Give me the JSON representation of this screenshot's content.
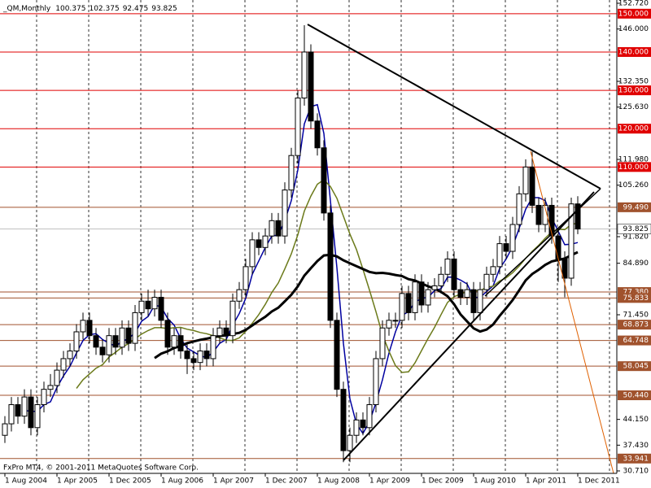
{
  "chart_data": {
    "type": "candlestick",
    "title": "_QM,Monthly",
    "footer": "FxPro MT4, © 2001-2011 MetaQuotes Software Corp.",
    "categories": [
      "1 Aug 2004",
      null,
      null,
      null,
      null,
      null,
      null,
      null,
      "1 Apr 2005",
      null,
      null,
      null,
      null,
      null,
      null,
      null,
      "1 Dec 2005",
      null,
      null,
      null,
      null,
      null,
      null,
      null,
      "1 Aug 2006",
      null,
      null,
      null,
      null,
      null,
      null,
      null,
      "1 Apr 2007",
      null,
      null,
      null,
      null,
      null,
      null,
      null,
      "1 Dec 2007",
      null,
      null,
      null,
      null,
      null,
      null,
      null,
      "1 Aug 2008",
      null,
      null,
      null,
      null,
      null,
      null,
      null,
      "1 Apr 2009",
      null,
      null,
      null,
      null,
      null,
      null,
      null,
      "1 Dec 2009",
      null,
      null,
      null,
      null,
      null,
      null,
      null,
      "1 Aug 2010",
      null,
      null,
      null,
      null,
      null,
      null,
      null,
      "1 Apr 2011",
      null,
      null,
      null,
      null,
      null,
      null,
      null,
      "1 Dec 2011"
    ],
    "open": [
      40,
      43,
      48,
      45,
      50,
      42,
      48,
      52,
      53,
      57,
      60,
      62,
      67,
      70,
      66,
      63,
      61,
      66,
      63,
      68,
      64,
      72,
      75,
      73,
      76,
      70,
      63,
      66,
      62,
      60,
      59,
      62,
      60,
      66,
      68,
      66,
      75,
      78,
      84,
      91,
      89,
      92,
      96,
      92,
      104,
      113,
      128,
      140,
      122,
      115,
      98,
      70,
      52,
      36,
      40,
      44,
      42,
      48,
      60,
      68,
      70,
      70,
      77,
      72,
      80,
      74,
      78,
      79,
      82,
      86,
      78,
      76,
      78,
      72,
      78,
      82,
      84,
      90,
      88,
      95,
      103,
      110,
      100,
      95,
      100,
      92,
      86,
      81,
      100.375
    ],
    "high": [
      45,
      50,
      50,
      52,
      52,
      50,
      54,
      56,
      59,
      62,
      64,
      69,
      72,
      72,
      68,
      65,
      68,
      68,
      70,
      70,
      74,
      77,
      78,
      78,
      78,
      72,
      68,
      68,
      64,
      62,
      64,
      64,
      68,
      70,
      70,
      77,
      80,
      86,
      93,
      93,
      94,
      98,
      98,
      106,
      115,
      130,
      147,
      142,
      124,
      117,
      100,
      72,
      54,
      42,
      46,
      46,
      50,
      62,
      70,
      72,
      72,
      79,
      79,
      82,
      82,
      80,
      81,
      84,
      88,
      88,
      80,
      80,
      80,
      80,
      84,
      86,
      92,
      92,
      97,
      105,
      112,
      114,
      102,
      102,
      102,
      94,
      88,
      102,
      102.375
    ],
    "low": [
      38,
      41,
      43,
      43,
      40,
      40,
      46,
      50,
      51,
      55,
      58,
      60,
      65,
      64,
      61,
      59,
      59,
      61,
      61,
      62,
      62,
      70,
      71,
      71,
      68,
      61,
      61,
      60,
      56,
      57,
      57,
      58,
      58,
      64,
      64,
      64,
      73,
      76,
      82,
      87,
      87,
      90,
      90,
      90,
      102,
      111,
      126,
      120,
      113,
      96,
      68,
      50,
      33,
      33,
      38,
      40,
      40,
      46,
      58,
      66,
      68,
      68,
      70,
      70,
      72,
      72,
      76,
      77,
      80,
      76,
      74,
      74,
      70,
      70,
      76,
      80,
      82,
      86,
      86,
      93,
      101,
      98,
      93,
      93,
      90,
      80,
      76,
      79,
      92.475
    ],
    "close": [
      43,
      48,
      45,
      50,
      42,
      48,
      52,
      53,
      57,
      60,
      62,
      67,
      70,
      66,
      63,
      61,
      66,
      63,
      68,
      64,
      72,
      75,
      73,
      76,
      70,
      63,
      66,
      62,
      60,
      59,
      62,
      60,
      66,
      68,
      66,
      75,
      78,
      84,
      91,
      89,
      92,
      96,
      92,
      104,
      113,
      128,
      140,
      122,
      115,
      98,
      70,
      52,
      36,
      40,
      44,
      42,
      48,
      60,
      68,
      70,
      70,
      77,
      72,
      80,
      74,
      78,
      79,
      82,
      86,
      78,
      76,
      78,
      72,
      78,
      82,
      84,
      90,
      88,
      95,
      103,
      110,
      100,
      95,
      100,
      92,
      86,
      81,
      100.375,
      93.825
    ],
    "up_color": "#ffffff",
    "down_color": "#000000",
    "ylim": [
      30.71,
      152.72
    ],
    "yticks": [
      {
        "value": 152.72,
        "label": "152.720"
      },
      {
        "value": 146,
        "label": "146.000"
      },
      {
        "value": 132.35,
        "label": "132.350"
      },
      {
        "value": 125.63,
        "label": "125.630"
      },
      {
        "value": 111.98,
        "label": "111.980"
      },
      {
        "value": 105.26,
        "label": "105.260"
      },
      {
        "value": 91.82,
        "label": "91.820"
      },
      {
        "value": 84.89,
        "label": "84.890"
      },
      {
        "value": 71.45,
        "label": "71.450"
      },
      {
        "value": 44.15,
        "label": "44.150"
      },
      {
        "value": 37.43,
        "label": "37.430"
      },
      {
        "value": 30.71,
        "label": "30.710"
      }
    ],
    "levels": [
      {
        "value": 150,
        "label": "150.000",
        "color": "#e00000"
      },
      {
        "value": 140,
        "label": "140.000",
        "color": "#e00000"
      },
      {
        "value": 130,
        "label": "130.000",
        "color": "#e00000"
      },
      {
        "value": 120,
        "label": "120.000",
        "color": "#e00000"
      },
      {
        "value": 110,
        "label": "110.000",
        "color": "#e00000"
      },
      {
        "value": 99.49,
        "label": "99.490",
        "color": "#a0522d"
      },
      {
        "value": 77.38,
        "label": "77.380",
        "color": "#a0522d"
      },
      {
        "value": 75.833,
        "color": "#a0522d"
      },
      {
        "value": 68.873,
        "color": "#a0522d"
      },
      {
        "value": 64.748,
        "color": "#a0522d"
      },
      {
        "value": 58.045,
        "color": "#a0522d"
      },
      {
        "value": 50.44,
        "label": "50.440",
        "color": "#a0522d"
      },
      {
        "value": 33.941,
        "color": "#a0522d"
      }
    ],
    "grid": true
  }
}
